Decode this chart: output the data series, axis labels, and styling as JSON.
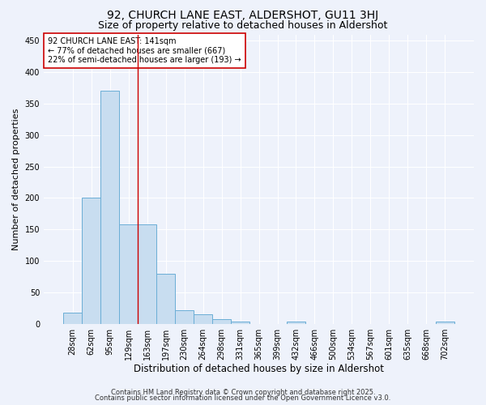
{
  "title": "92, CHURCH LANE EAST, ALDERSHOT, GU11 3HJ",
  "subtitle": "Size of property relative to detached houses in Aldershot",
  "xlabel": "Distribution of detached houses by size in Aldershot",
  "ylabel": "Number of detached properties",
  "categories": [
    "28sqm",
    "62sqm",
    "95sqm",
    "129sqm",
    "163sqm",
    "197sqm",
    "230sqm",
    "264sqm",
    "298sqm",
    "331sqm",
    "365sqm",
    "399sqm",
    "432sqm",
    "466sqm",
    "500sqm",
    "534sqm",
    "567sqm",
    "601sqm",
    "635sqm",
    "668sqm",
    "702sqm"
  ],
  "values": [
    18,
    201,
    370,
    158,
    158,
    80,
    22,
    15,
    7,
    4,
    0,
    0,
    4,
    0,
    0,
    0,
    0,
    0,
    0,
    0,
    3
  ],
  "bar_color": "#c8ddf0",
  "bar_edge_color": "#6baed6",
  "vline_x": 3.5,
  "vline_color": "#cc0000",
  "annotation_line1": "92 CHURCH LANE EAST: 141sqm",
  "annotation_line2": "← 77% of detached houses are smaller (667)",
  "annotation_line3": "22% of semi-detached houses are larger (193) →",
  "annotation_box_color": "#cc0000",
  "annotation_box_facecolor": "white",
  "annotation_fontsize": 7,
  "ylim": [
    0,
    460
  ],
  "yticks": [
    0,
    50,
    100,
    150,
    200,
    250,
    300,
    350,
    400,
    450
  ],
  "title_fontsize": 10,
  "subtitle_fontsize": 9,
  "xlabel_fontsize": 8.5,
  "ylabel_fontsize": 8,
  "tick_fontsize": 7,
  "footer_line1": "Contains HM Land Registry data © Crown copyright and database right 2025.",
  "footer_line2": "Contains public sector information licensed under the Open Government Licence v3.0.",
  "footer_fontsize": 6,
  "bg_color": "#eef2fb",
  "grid_color": "white"
}
